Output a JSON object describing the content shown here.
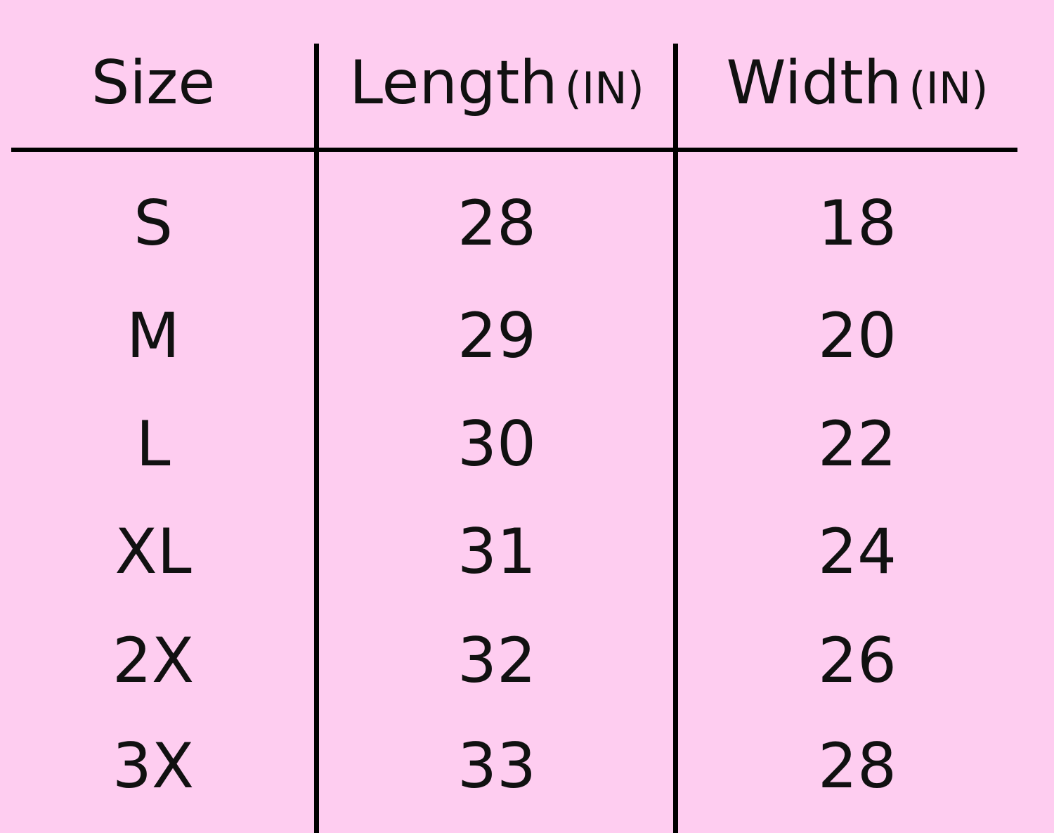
{
  "table": {
    "header": [
      {
        "text": "Size"
      },
      {
        "text": "Length",
        "unit": "(IN)"
      },
      {
        "text": "Width",
        "unit": "(IN)"
      }
    ],
    "rows": [
      [
        "S",
        28,
        18
      ],
      [
        "M",
        29,
        20
      ],
      [
        "L",
        30,
        22
      ],
      [
        "XL",
        31,
        24
      ],
      [
        "2X",
        32,
        26
      ],
      [
        "3X",
        33,
        28
      ]
    ]
  }
}
